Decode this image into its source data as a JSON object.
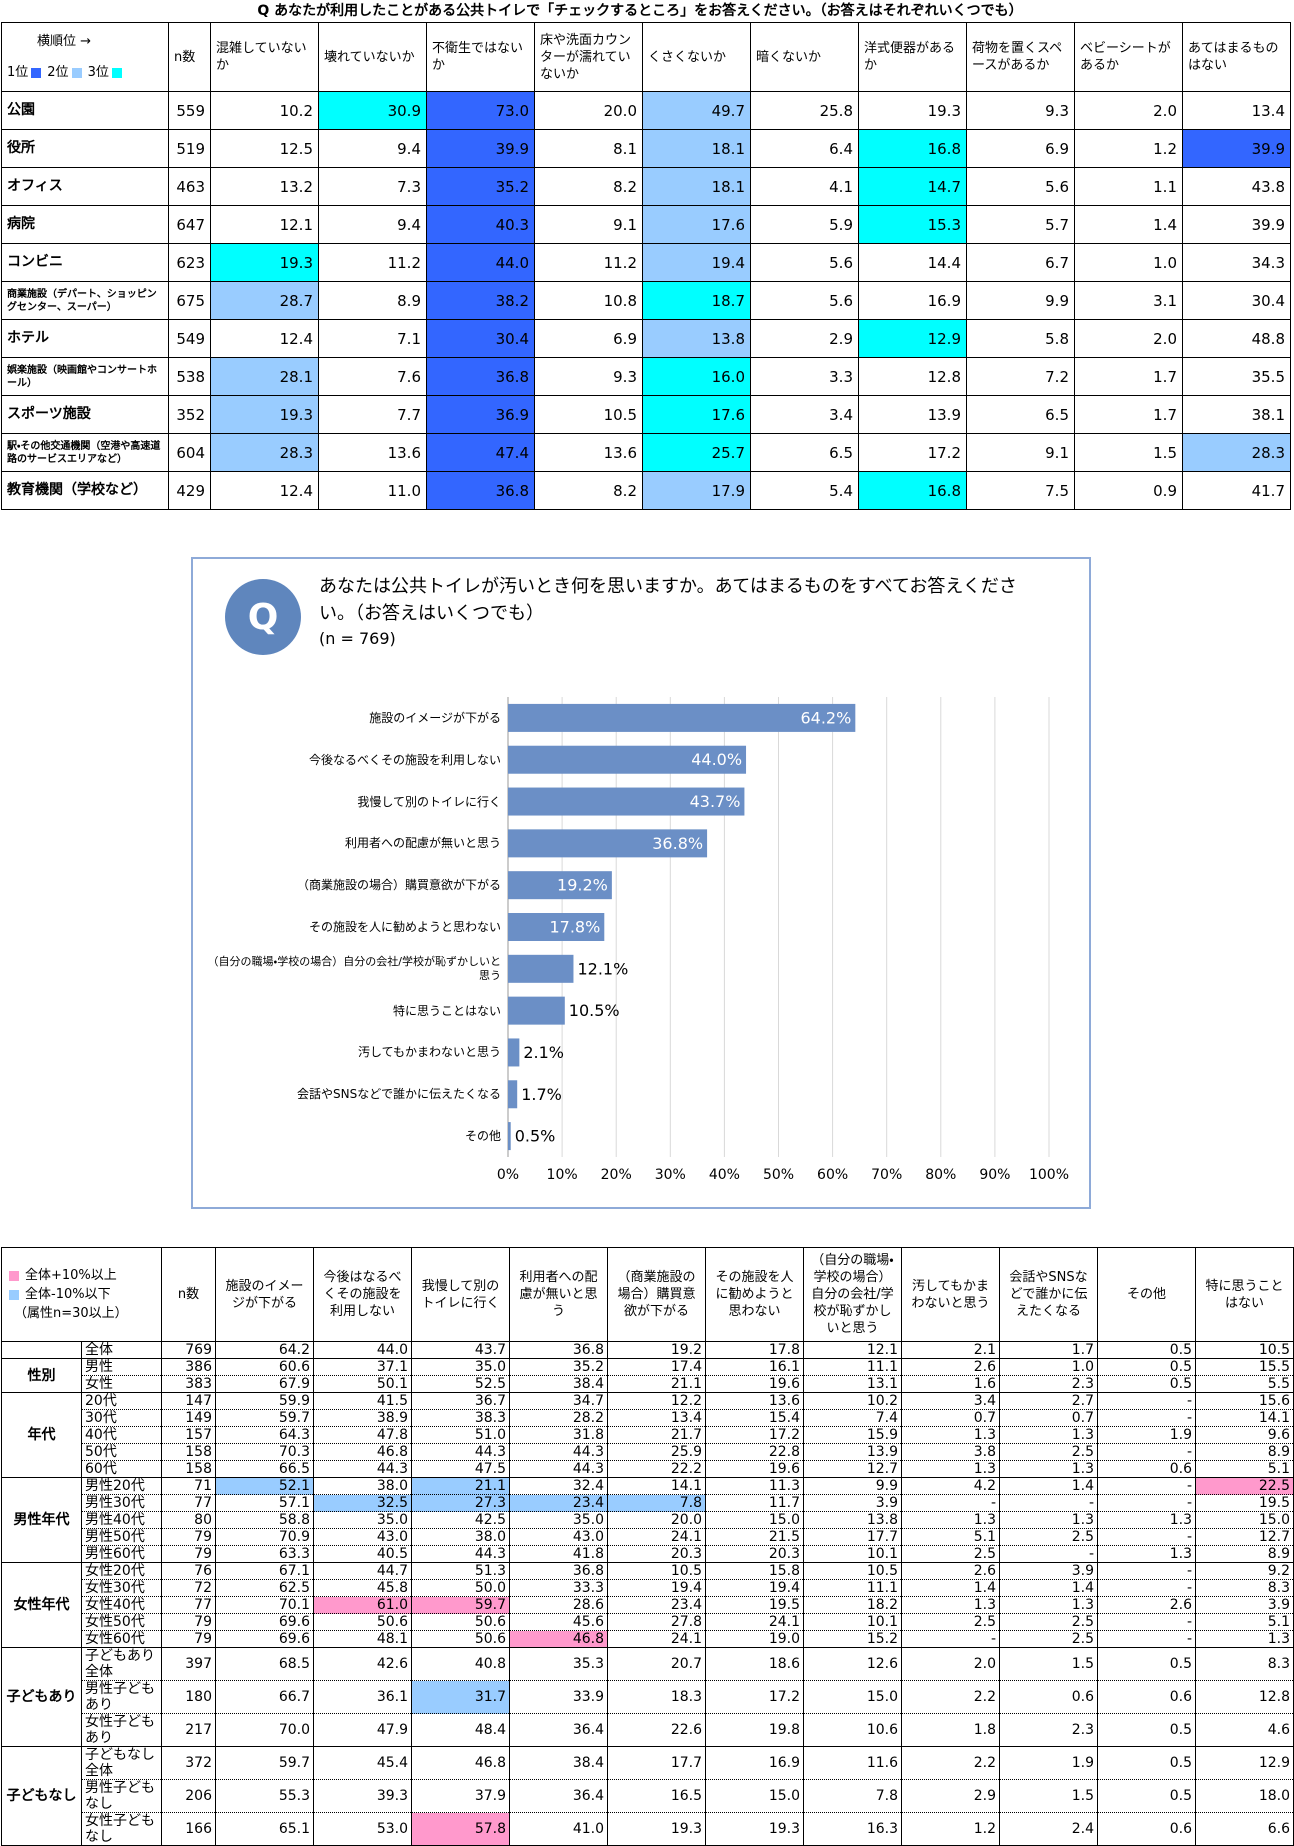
{
  "table1": {
    "title": "Q あなたが利用したことがある公共トイレで「チェックするところ」をお答えください。（お答えはそれぞれいくつでも）",
    "corner": "横順位 →",
    "rank_legend": [
      {
        "label": "1位",
        "color": "#3366ff"
      },
      {
        "label": "2位",
        "color": "#99ccff"
      },
      {
        "label": "3位",
        "color": "#00ffff"
      }
    ],
    "headers": [
      "n数",
      "混雑していないか",
      "壊れていないか",
      "不衛生ではないか",
      "床や洗面カウンターが濡れていないか",
      "くさくないか",
      "暗くないか",
      "洋式便器があるか",
      "荷物を置くスペースがあるか",
      "ベビーシートがあるか",
      "あてはまるものはない"
    ],
    "rows": [
      {
        "label": "公園",
        "n": "559",
        "cells": [
          "10.2",
          {
            "text": "30.9",
            "color": "#00ffff"
          },
          {
            "text": "73.0",
            "color": "#3366ff"
          },
          "20.0",
          {
            "text": "49.7",
            "color": "#99ccff"
          },
          "25.8",
          "19.3",
          "9.3",
          "2.0",
          "13.4"
        ]
      },
      {
        "label": "役所",
        "n": "519",
        "cells": [
          "12.5",
          "9.4",
          {
            "text": "39.9",
            "color": "#3366ff"
          },
          "8.1",
          {
            "text": "18.1",
            "color": "#99ccff"
          },
          "6.4",
          {
            "text": "16.8",
            "color": "#00ffff"
          },
          "6.9",
          "1.2",
          {
            "text": "39.9",
            "color": "#3366ff"
          }
        ]
      },
      {
        "label": "オフィス",
        "n": "463",
        "cells": [
          "13.2",
          "7.3",
          {
            "text": "35.2",
            "color": "#3366ff"
          },
          "8.2",
          {
            "text": "18.1",
            "color": "#99ccff"
          },
          "4.1",
          {
            "text": "14.7",
            "color": "#00ffff"
          },
          "5.6",
          "1.1",
          "43.8"
        ]
      },
      {
        "label": "病院",
        "n": "647",
        "cells": [
          "12.1",
          "9.4",
          {
            "text": "40.3",
            "color": "#3366ff"
          },
          "9.1",
          {
            "text": "17.6",
            "color": "#99ccff"
          },
          "5.9",
          {
            "text": "15.3",
            "color": "#00ffff"
          },
          "5.7",
          "1.4",
          "39.9"
        ]
      },
      {
        "label": "コンビニ",
        "n": "623",
        "cells": [
          {
            "text": "19.3",
            "color": "#00ffff"
          },
          "11.2",
          {
            "text": "44.0",
            "color": "#3366ff"
          },
          "11.2",
          {
            "text": "19.4",
            "color": "#99ccff"
          },
          "5.6",
          "14.4",
          "6.7",
          "1.0",
          "34.3"
        ]
      },
      {
        "label": "商業施設（デパート、ショッピングセンター、スーパー）",
        "n": "675",
        "cells": [
          {
            "text": "28.7",
            "color": "#99ccff"
          },
          "8.9",
          {
            "text": "38.2",
            "color": "#3366ff"
          },
          "10.8",
          {
            "text": "18.7",
            "color": "#00ffff"
          },
          "5.6",
          "16.9",
          "9.9",
          "3.1",
          "30.4"
        ]
      },
      {
        "label": "ホテル",
        "n": "549",
        "cells": [
          "12.4",
          "7.1",
          {
            "text": "30.4",
            "color": "#3366ff"
          },
          "6.9",
          {
            "text": "13.8",
            "color": "#99ccff"
          },
          "2.9",
          {
            "text": "12.9",
            "color": "#00ffff"
          },
          "5.8",
          "2.0",
          "48.8"
        ]
      },
      {
        "label": "娯楽施設（映画館やコンサートホール）",
        "n": "538",
        "cells": [
          {
            "text": "28.1",
            "color": "#99ccff"
          },
          "7.6",
          {
            "text": "36.8",
            "color": "#3366ff"
          },
          "9.3",
          {
            "text": "16.0",
            "color": "#00ffff"
          },
          "3.3",
          "12.8",
          "7.2",
          "1.7",
          "35.5"
        ]
      },
      {
        "label": "スポーツ施設",
        "n": "352",
        "cells": [
          {
            "text": "19.3",
            "color": "#99ccff"
          },
          "7.7",
          {
            "text": "36.9",
            "color": "#3366ff"
          },
          "10.5",
          {
            "text": "17.6",
            "color": "#00ffff"
          },
          "3.4",
          "13.9",
          "6.5",
          "1.7",
          "38.1"
        ]
      },
      {
        "label": "駅・その他交通機関（空港や高速道路のサービスエリアなど）",
        "n": "604",
        "cells": [
          {
            "text": "28.3",
            "color": "#99ccff"
          },
          "13.6",
          {
            "text": "47.4",
            "color": "#3366ff"
          },
          "13.6",
          {
            "text": "25.7",
            "color": "#00ffff"
          },
          "6.5",
          "17.2",
          "9.1",
          "1.5",
          {
            "text": "28.3",
            "color": "#99ccff"
          }
        ]
      },
      {
        "label": "教育機関（学校など）",
        "n": "429",
        "cells": [
          "12.4",
          "11.0",
          {
            "text": "36.8",
            "color": "#3366ff"
          },
          "8.2",
          {
            "text": "17.9",
            "color": "#99ccff"
          },
          "5.4",
          {
            "text": "16.8",
            "color": "#00ffff"
          },
          "7.5",
          "0.9",
          "41.7"
        ]
      }
    ]
  },
  "chart_data": {
    "type": "hbar",
    "icon": "Q",
    "title": "あなたは公共トイレが汚いとき何を思いますか。あてはまるものをすべてお答えください。（お答えはいくつでも）",
    "subtitle": "(n = 769)",
    "categories": [
      "施設のイメージが下がる",
      "今後なるべくその施設を利用しない",
      "我慢して別のトイレに行く",
      "利用者への配慮が無いと思う",
      "（商業施設の場合）購買意欲が下がる",
      "その施設を人に勧めようと思わない",
      "（自分の職場・学校の場合）自分の会社/学校が恥ずかしいと思う",
      "特に思うことはない",
      "汚してもかまわないと思う",
      "会話やSNSなどで誰かに伝えたくなる",
      "その他"
    ],
    "values": [
      64.2,
      44.0,
      43.7,
      36.8,
      19.2,
      17.8,
      12.1,
      10.5,
      2.1,
      1.7,
      0.5
    ],
    "value_labels": [
      "64.2%",
      "44.0%",
      "43.7%",
      "36.8%",
      "19.2%",
      "17.8%",
      "12.1%",
      "10.5%",
      "2.1%",
      "1.7%",
      "0.5%"
    ],
    "color": "#6b8fc6",
    "grid": true,
    "xlim": [
      0,
      100
    ],
    "xticks": [
      {
        "value": 0,
        "label": "0%"
      },
      {
        "value": 10,
        "label": "10%"
      },
      {
        "value": 20,
        "label": "20%"
      },
      {
        "value": 30,
        "label": "30%"
      },
      {
        "value": 40,
        "label": "40%"
      },
      {
        "value": 50,
        "label": "50%"
      },
      {
        "value": 60,
        "label": "60%"
      },
      {
        "value": 70,
        "label": "70%"
      },
      {
        "value": 80,
        "label": "80%"
      },
      {
        "value": 90,
        "label": "90%"
      },
      {
        "value": 100,
        "label": "100%"
      }
    ]
  },
  "table2": {
    "legend": [
      {
        "label": "全体+10%以上",
        "color": "#ff99cc"
      },
      {
        "label": "全体-10%以下",
        "color": "#99ccff"
      }
    ],
    "note": "（属性n=30以上）",
    "headers": [
      "n数",
      "施設のイメージが下がる",
      "今後はなるべくその施設を利用しない",
      "我慢して別のトイレに行く",
      "利用者への配慮が無いと思う",
      "（商業施設の場合）購買意欲が下がる",
      "その施設を人に勧めようと思わない",
      "（自分の職場・学校の場合）自分の会社/学校が恥ずかしいと思う",
      "汚してもかまわないと思う",
      "会話やSNSなどで誰かに伝えたくなる",
      "その他",
      "特に思うことはない"
    ],
    "groups": [
      {
        "rows": [
          {
            "label": "全体",
            "n": "769",
            "cells": [
              "64.2",
              "44.0",
              "43.7",
              "36.8",
              "19.2",
              "17.8",
              "12.1",
              "2.1",
              "1.7",
              "0.5",
              "10.5"
            ]
          }
        ]
      },
      {
        "label": "性別",
        "rows": [
          {
            "label": "男性",
            "n": "386",
            "cells": [
              "60.6",
              "37.1",
              "35.0",
              "35.2",
              "17.4",
              "16.1",
              "11.1",
              "2.6",
              "1.0",
              "0.5",
              "15.5"
            ]
          },
          {
            "label": "女性",
            "n": "383",
            "cells": [
              "67.9",
              "50.1",
              "52.5",
              "38.4",
              "21.1",
              "19.6",
              "13.1",
              "1.6",
              "2.3",
              "0.5",
              "5.5"
            ]
          }
        ]
      },
      {
        "label": "年代",
        "rows": [
          {
            "label": "20代",
            "n": "147",
            "cells": [
              "59.9",
              "41.5",
              "36.7",
              "34.7",
              "12.2",
              "13.6",
              "10.2",
              "3.4",
              "2.7",
              "-",
              "15.6"
            ]
          },
          {
            "label": "30代",
            "n": "149",
            "cells": [
              "59.7",
              "38.9",
              "38.3",
              "28.2",
              "13.4",
              "15.4",
              "7.4",
              "0.7",
              "0.7",
              "-",
              "14.1"
            ]
          },
          {
            "label": "40代",
            "n": "157",
            "cells": [
              "64.3",
              "47.8",
              "51.0",
              "31.8",
              "21.7",
              "17.2",
              "15.9",
              "1.3",
              "1.3",
              "1.9",
              "9.6"
            ]
          },
          {
            "label": "50代",
            "n": "158",
            "cells": [
              "70.3",
              "46.8",
              "44.3",
              "44.3",
              "25.9",
              "22.8",
              "13.9",
              "3.8",
              "2.5",
              "-",
              "8.9"
            ]
          },
          {
            "label": "60代",
            "n": "158",
            "cells": [
              "66.5",
              "44.3",
              "47.5",
              "44.3",
              "22.2",
              "19.6",
              "12.7",
              "1.3",
              "1.3",
              "0.6",
              "5.1"
            ]
          }
        ]
      },
      {
        "label": "男性年代",
        "rows": [
          {
            "label": "男性20代",
            "n": "71",
            "cells": [
              {
                "text": "52.1",
                "color": "#99ccff"
              },
              "38.0",
              {
                "text": "21.1",
                "color": "#99ccff"
              },
              "32.4",
              "14.1",
              "11.3",
              "9.9",
              "4.2",
              "1.4",
              "-",
              {
                "text": "22.5",
                "color": "#ff99cc"
              }
            ]
          },
          {
            "label": "男性30代",
            "n": "77",
            "cells": [
              "57.1",
              {
                "text": "32.5",
                "color": "#99ccff"
              },
              {
                "text": "27.3",
                "color": "#99ccff"
              },
              {
                "text": "23.4",
                "color": "#99ccff"
              },
              {
                "text": "7.8",
                "color": "#99ccff"
              },
              "11.7",
              "3.9",
              "-",
              "-",
              "-",
              "19.5"
            ]
          },
          {
            "label": "男性40代",
            "n": "80",
            "cells": [
              "58.8",
              "35.0",
              "42.5",
              "35.0",
              "20.0",
              "15.0",
              "13.8",
              "1.3",
              "1.3",
              "1.3",
              "15.0"
            ]
          },
          {
            "label": "男性50代",
            "n": "79",
            "cells": [
              "70.9",
              "43.0",
              "38.0",
              "43.0",
              "24.1",
              "21.5",
              "17.7",
              "5.1",
              "2.5",
              "-",
              "12.7"
            ]
          },
          {
            "label": "男性60代",
            "n": "79",
            "cells": [
              "63.3",
              "40.5",
              "44.3",
              "41.8",
              "20.3",
              "20.3",
              "10.1",
              "2.5",
              "-",
              "1.3",
              "8.9"
            ]
          }
        ]
      },
      {
        "label": "女性年代",
        "rows": [
          {
            "label": "女性20代",
            "n": "76",
            "cells": [
              "67.1",
              "44.7",
              "51.3",
              "36.8",
              "10.5",
              "15.8",
              "10.5",
              "2.6",
              "3.9",
              "-",
              "9.2"
            ]
          },
          {
            "label": "女性30代",
            "n": "72",
            "cells": [
              "62.5",
              "45.8",
              "50.0",
              "33.3",
              "19.4",
              "19.4",
              "11.1",
              "1.4",
              "1.4",
              "-",
              "8.3"
            ]
          },
          {
            "label": "女性40代",
            "n": "77",
            "cells": [
              "70.1",
              {
                "text": "61.0",
                "color": "#ff99cc"
              },
              {
                "text": "59.7",
                "color": "#ff99cc"
              },
              "28.6",
              "23.4",
              "19.5",
              "18.2",
              "1.3",
              "1.3",
              "2.6",
              "3.9"
            ]
          },
          {
            "label": "女性50代",
            "n": "79",
            "cells": [
              "69.6",
              "50.6",
              "50.6",
              "45.6",
              "27.8",
              "24.1",
              "10.1",
              "2.5",
              "2.5",
              "-",
              "5.1"
            ]
          },
          {
            "label": "女性60代",
            "n": "79",
            "cells": [
              "69.6",
              "48.1",
              "50.6",
              {
                "text": "46.8",
                "color": "#ff99cc"
              },
              "24.1",
              "19.0",
              "15.2",
              "-",
              "2.5",
              "-",
              "1.3"
            ]
          }
        ]
      },
      {
        "label": "子どもあり",
        "rows": [
          {
            "label": "子どもあり全体",
            "n": "397",
            "cells": [
              "68.5",
              "42.6",
              "40.8",
              "35.3",
              "20.7",
              "18.6",
              "12.6",
              "2.0",
              "1.5",
              "0.5",
              "8.3"
            ]
          },
          {
            "label": "男性子どもあり",
            "n": "180",
            "cells": [
              "66.7",
              "36.1",
              {
                "text": "31.7",
                "color": "#99ccff"
              },
              "33.9",
              "18.3",
              "17.2",
              "15.0",
              "2.2",
              "0.6",
              "0.6",
              "12.8"
            ]
          },
          {
            "label": "女性子どもあり",
            "n": "217",
            "cells": [
              "70.0",
              "47.9",
              "48.4",
              "36.4",
              "22.6",
              "19.8",
              "10.6",
              "1.8",
              "2.3",
              "0.5",
              "4.6"
            ]
          }
        ]
      },
      {
        "label": "子どもなし",
        "rows": [
          {
            "label": "子どもなし全体",
            "n": "372",
            "cells": [
              "59.7",
              "45.4",
              "46.8",
              "38.4",
              "17.7",
              "16.9",
              "11.6",
              "2.2",
              "1.9",
              "0.5",
              "12.9"
            ]
          },
          {
            "label": "男性子どもなし",
            "n": "206",
            "cells": [
              "55.3",
              "39.3",
              "37.9",
              "36.4",
              "16.5",
              "15.0",
              "7.8",
              "2.9",
              "1.5",
              "0.5",
              "18.0"
            ]
          },
          {
            "label": "女性子どもなし",
            "n": "166",
            "cells": [
              "65.1",
              "53.0",
              {
                "text": "57.8",
                "color": "#ff99cc"
              },
              "41.0",
              "19.3",
              "19.3",
              "16.3",
              "1.2",
              "2.4",
              "0.6",
              "6.6"
            ]
          }
        ]
      }
    ]
  }
}
